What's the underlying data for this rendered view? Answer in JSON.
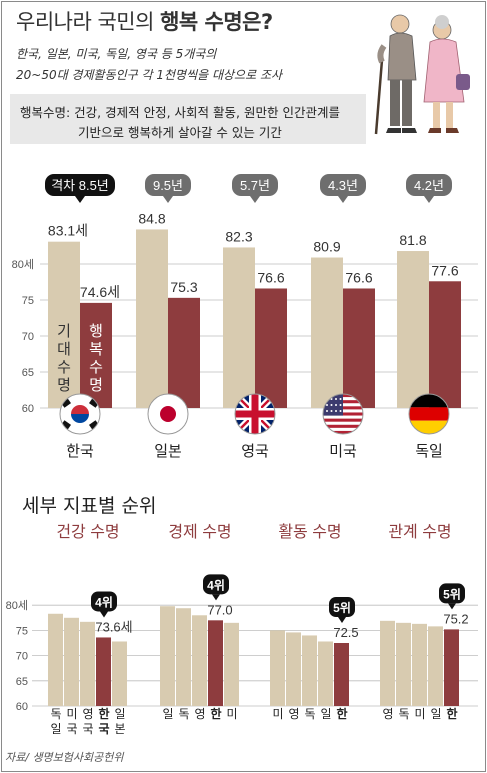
{
  "title_prefix": "우리나라 국민의 ",
  "title_bold": "행복 수명은?",
  "subtitle_lines": [
    "한국, 일본, 미국, 독일, 영국 등 5개국의",
    "20~50대 경제활동인구 각 1천명씩을 대상으로 조사"
  ],
  "definition_lines": [
    "행복수명: 건강, 경제적 안정, 사회적 활동, 원만한 인간관계를",
    "기반으로 행복하게 살아갈 수 있는 기간"
  ],
  "source": "자료/ 생명보험사회공헌위",
  "section2_title": "세부 지표별 순위",
  "colors": {
    "life": "#d8cbb0",
    "happy": "#8e3c3e",
    "gap_bubble": "#6e6e6e",
    "top_bubble": "#111111",
    "sub_title": "#8e3c3e",
    "grid": "#bdbdbd",
    "axis_text": "#555555"
  },
  "chart_data": [
    {
      "type": "bar",
      "ylim": [
        60,
        85
      ],
      "yticks": [
        "60",
        "65",
        "70",
        "75",
        "80세"
      ],
      "categories": [
        "한국",
        "일본",
        "영국",
        "미국",
        "독일"
      ],
      "flags": [
        "korea-flag-icon",
        "japan-flag-icon",
        "uk-flag-icon",
        "usa-flag-icon",
        "germany-flag-icon"
      ],
      "series": [
        {
          "name": "기대수명",
          "values": [
            83.1,
            84.8,
            82.3,
            80.9,
            81.8
          ],
          "labels": [
            "83.1세",
            "84.8",
            "82.3",
            "80.9",
            "81.8"
          ]
        },
        {
          "name": "행복수명",
          "values": [
            74.6,
            75.3,
            76.6,
            76.6,
            77.6
          ],
          "labels": [
            "74.6세",
            "75.3",
            "76.6",
            "76.6",
            "77.6"
          ]
        }
      ],
      "gap_labels": [
        "격차 8.5년",
        "9.5년",
        "5.7년",
        "4.3년",
        "4.2년"
      ]
    },
    {
      "type": "bar",
      "title": "건강 수명",
      "ylim": [
        60,
        85
      ],
      "yticks": [
        "60",
        "65",
        "70",
        "75",
        "80세"
      ],
      "categories": [
        "독일",
        "미국",
        "영국",
        "한국",
        "일본"
      ],
      "highlight_index": 3,
      "values": [
        78.3,
        77.5,
        76.7,
        73.6,
        72.8
      ],
      "value_label": "73.6세",
      "rank_label": "4위"
    },
    {
      "type": "bar",
      "title": "경제 수명",
      "ylim": [
        60,
        85
      ],
      "categories": [
        "일",
        "독",
        "영",
        "한",
        "미"
      ],
      "highlight_index": 3,
      "values": [
        79.8,
        79.4,
        78.0,
        77.0,
        76.5
      ],
      "value_label": "77.0",
      "rank_label": "4위"
    },
    {
      "type": "bar",
      "title": "활동 수명",
      "ylim": [
        60,
        85
      ],
      "categories": [
        "미",
        "영",
        "독",
        "일",
        "한"
      ],
      "highlight_index": 4,
      "values": [
        75.0,
        74.6,
        74.0,
        72.8,
        72.5
      ],
      "value_label": "72.5",
      "rank_label": "5위"
    },
    {
      "type": "bar",
      "title": "관계 수명",
      "ylim": [
        60,
        85
      ],
      "categories": [
        "영",
        "독",
        "미",
        "일",
        "한"
      ],
      "highlight_index": 4,
      "values": [
        76.9,
        76.5,
        76.3,
        75.8,
        75.2
      ],
      "value_label": "75.2",
      "rank_label": "5위"
    }
  ]
}
